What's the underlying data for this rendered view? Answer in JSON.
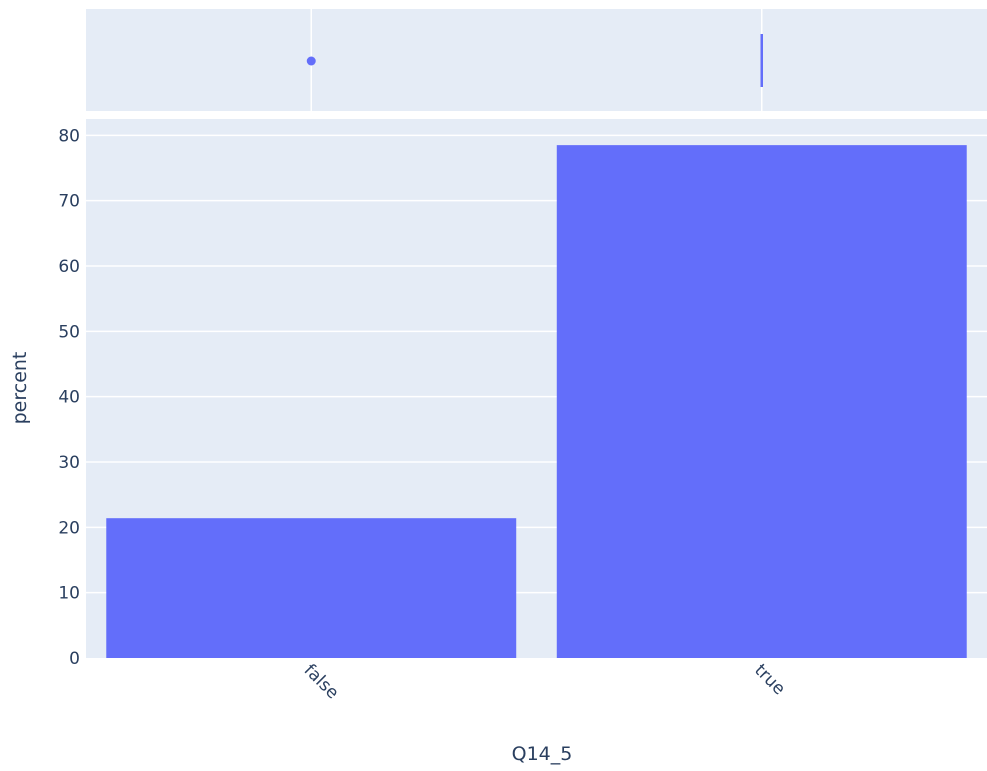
{
  "chart_data": {
    "type": "bar",
    "categories": [
      "false",
      "true"
    ],
    "values": [
      21.4,
      78.5
    ],
    "xlabel": "Q14_5",
    "ylabel": "percent",
    "ylim": [
      0,
      82.5
    ],
    "yticks": [
      "0",
      "10",
      "20",
      "30",
      "40",
      "50",
      "60",
      "70",
      "80"
    ],
    "grid": true,
    "marginal_plot": {
      "type": "strip",
      "description_marks": [
        "point",
        "segment"
      ]
    }
  },
  "colors": {
    "bar": "#636efa",
    "plot_background": "#e5ecf6",
    "grid": "#ffffff",
    "text": "#2a3f5f"
  }
}
